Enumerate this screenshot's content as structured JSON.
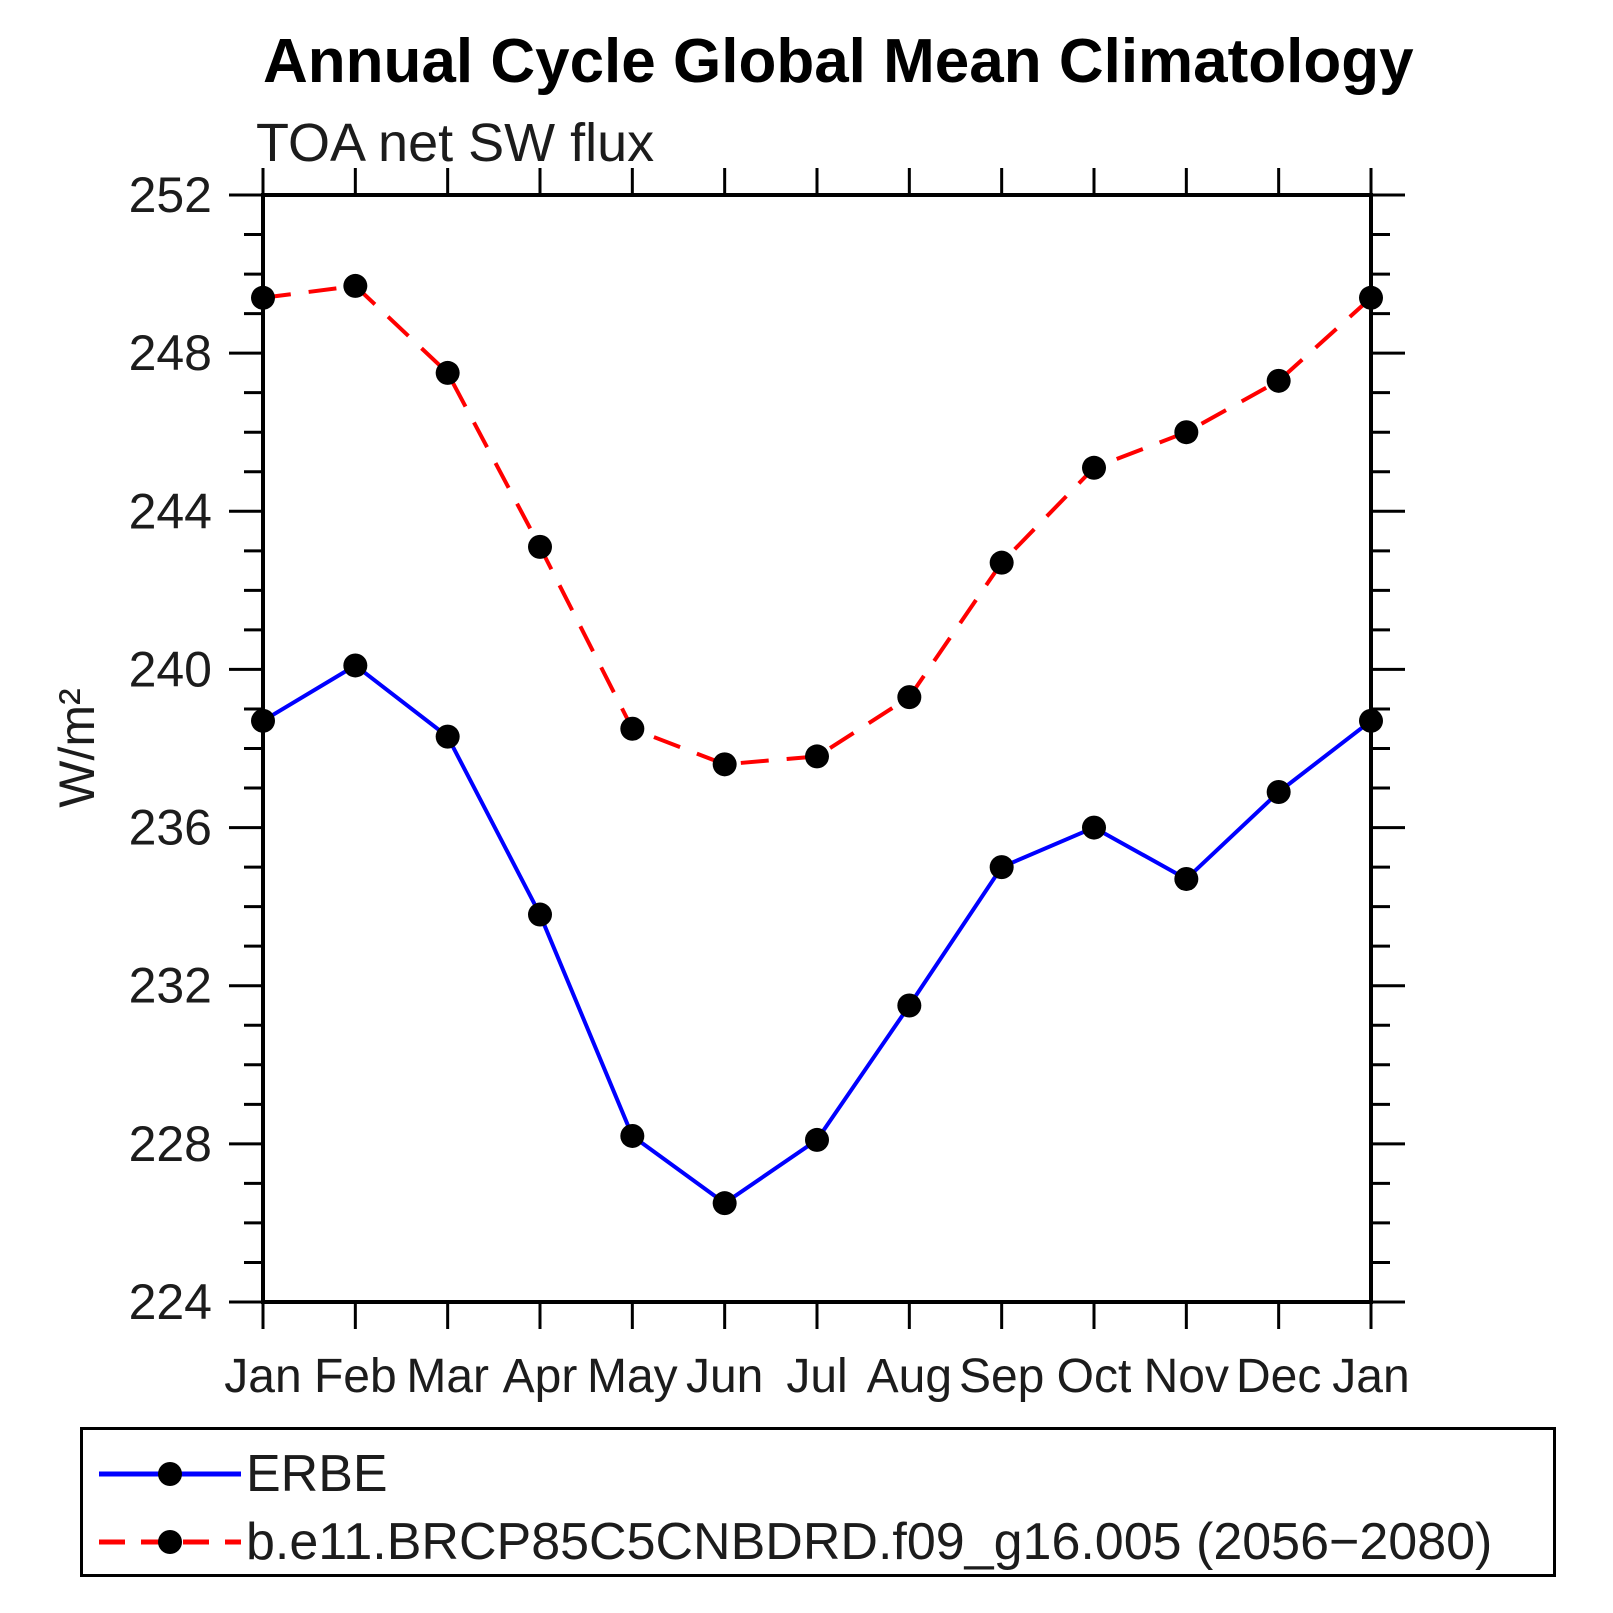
{
  "title": "Annual Cycle Global Mean Climatology",
  "subtitle": "TOA net SW flux",
  "y_axis": {
    "title": "W/m²",
    "min": 224,
    "max": 252,
    "major_step": 4,
    "minor_step": 1
  },
  "x_axis": {
    "categories": [
      "Jan",
      "Feb",
      "Mar",
      "Apr",
      "May",
      "Jun",
      "Jul",
      "Aug",
      "Sep",
      "Oct",
      "Nov",
      "Dec",
      "Jan"
    ]
  },
  "legend": {
    "entries": [
      {
        "label": "ERBE",
        "color": "#0000ff",
        "line_style": "solid"
      },
      {
        "label": "b.e11.BRCP85C5CNBDRD.f09_g16.005 (2056−2080)",
        "color": "#ff0000",
        "line_style": "dashed"
      }
    ]
  },
  "chart_data": {
    "type": "line",
    "title": "Annual Cycle Global Mean Climatology",
    "subtitle": "TOA net SW flux",
    "ylabel": "W/m²",
    "ylim": [
      224,
      252
    ],
    "y_major_tick_step": 4,
    "y_minor_tick_step": 1,
    "grid": false,
    "legend_position": "bottom",
    "categories": [
      "Jan",
      "Feb",
      "Mar",
      "Apr",
      "May",
      "Jun",
      "Jul",
      "Aug",
      "Sep",
      "Oct",
      "Nov",
      "Dec",
      "Jan"
    ],
    "series": [
      {
        "name": "ERBE",
        "color": "#0000ff",
        "line_style": "solid",
        "marker": "circle",
        "marker_color": "#000000",
        "values": [
          238.7,
          240.1,
          238.3,
          233.8,
          228.2,
          226.5,
          228.1,
          231.5,
          235.0,
          236.0,
          234.7,
          236.9,
          238.7
        ]
      },
      {
        "name": "b.e11.BRCP85C5CNBDRD.f09_g16.005 (2056−2080)",
        "color": "#ff0000",
        "line_style": "dashed",
        "marker": "circle",
        "marker_color": "#000000",
        "values": [
          249.4,
          249.7,
          247.5,
          243.1,
          238.5,
          237.6,
          237.8,
          239.3,
          242.7,
          245.1,
          246.0,
          247.3,
          249.4
        ]
      }
    ]
  }
}
